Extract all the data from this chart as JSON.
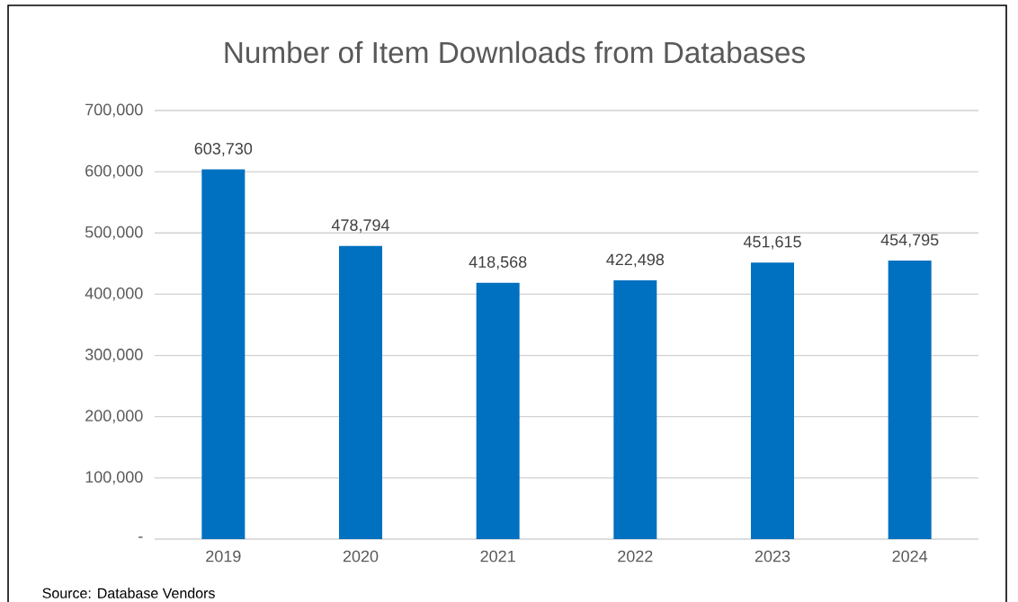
{
  "chart_data": {
    "type": "bar",
    "title": "Number of Item Downloads from Databases",
    "categories": [
      "2019",
      "2020",
      "2021",
      "2022",
      "2023",
      "2024"
    ],
    "values": [
      603730,
      478794,
      418568,
      422498,
      451615,
      454795
    ],
    "value_labels": [
      "603,730",
      "478,794",
      "418,568",
      "422,498",
      "451,615",
      "454,795"
    ],
    "color": "#0070c0",
    "ylim": [
      0,
      700000
    ],
    "yticks": [
      {
        "value": 0,
        "label": "-"
      },
      {
        "value": 100000,
        "label": "100,000"
      },
      {
        "value": 200000,
        "label": "200,000"
      },
      {
        "value": 300000,
        "label": "300,000"
      },
      {
        "value": 400000,
        "label": "400,000"
      },
      {
        "value": 500000,
        "label": "500,000"
      },
      {
        "value": 600000,
        "label": "600,000"
      },
      {
        "value": 700000,
        "label": "700,000"
      }
    ],
    "grid": "y",
    "annotations": [
      "Source: Database Vendors"
    ]
  }
}
